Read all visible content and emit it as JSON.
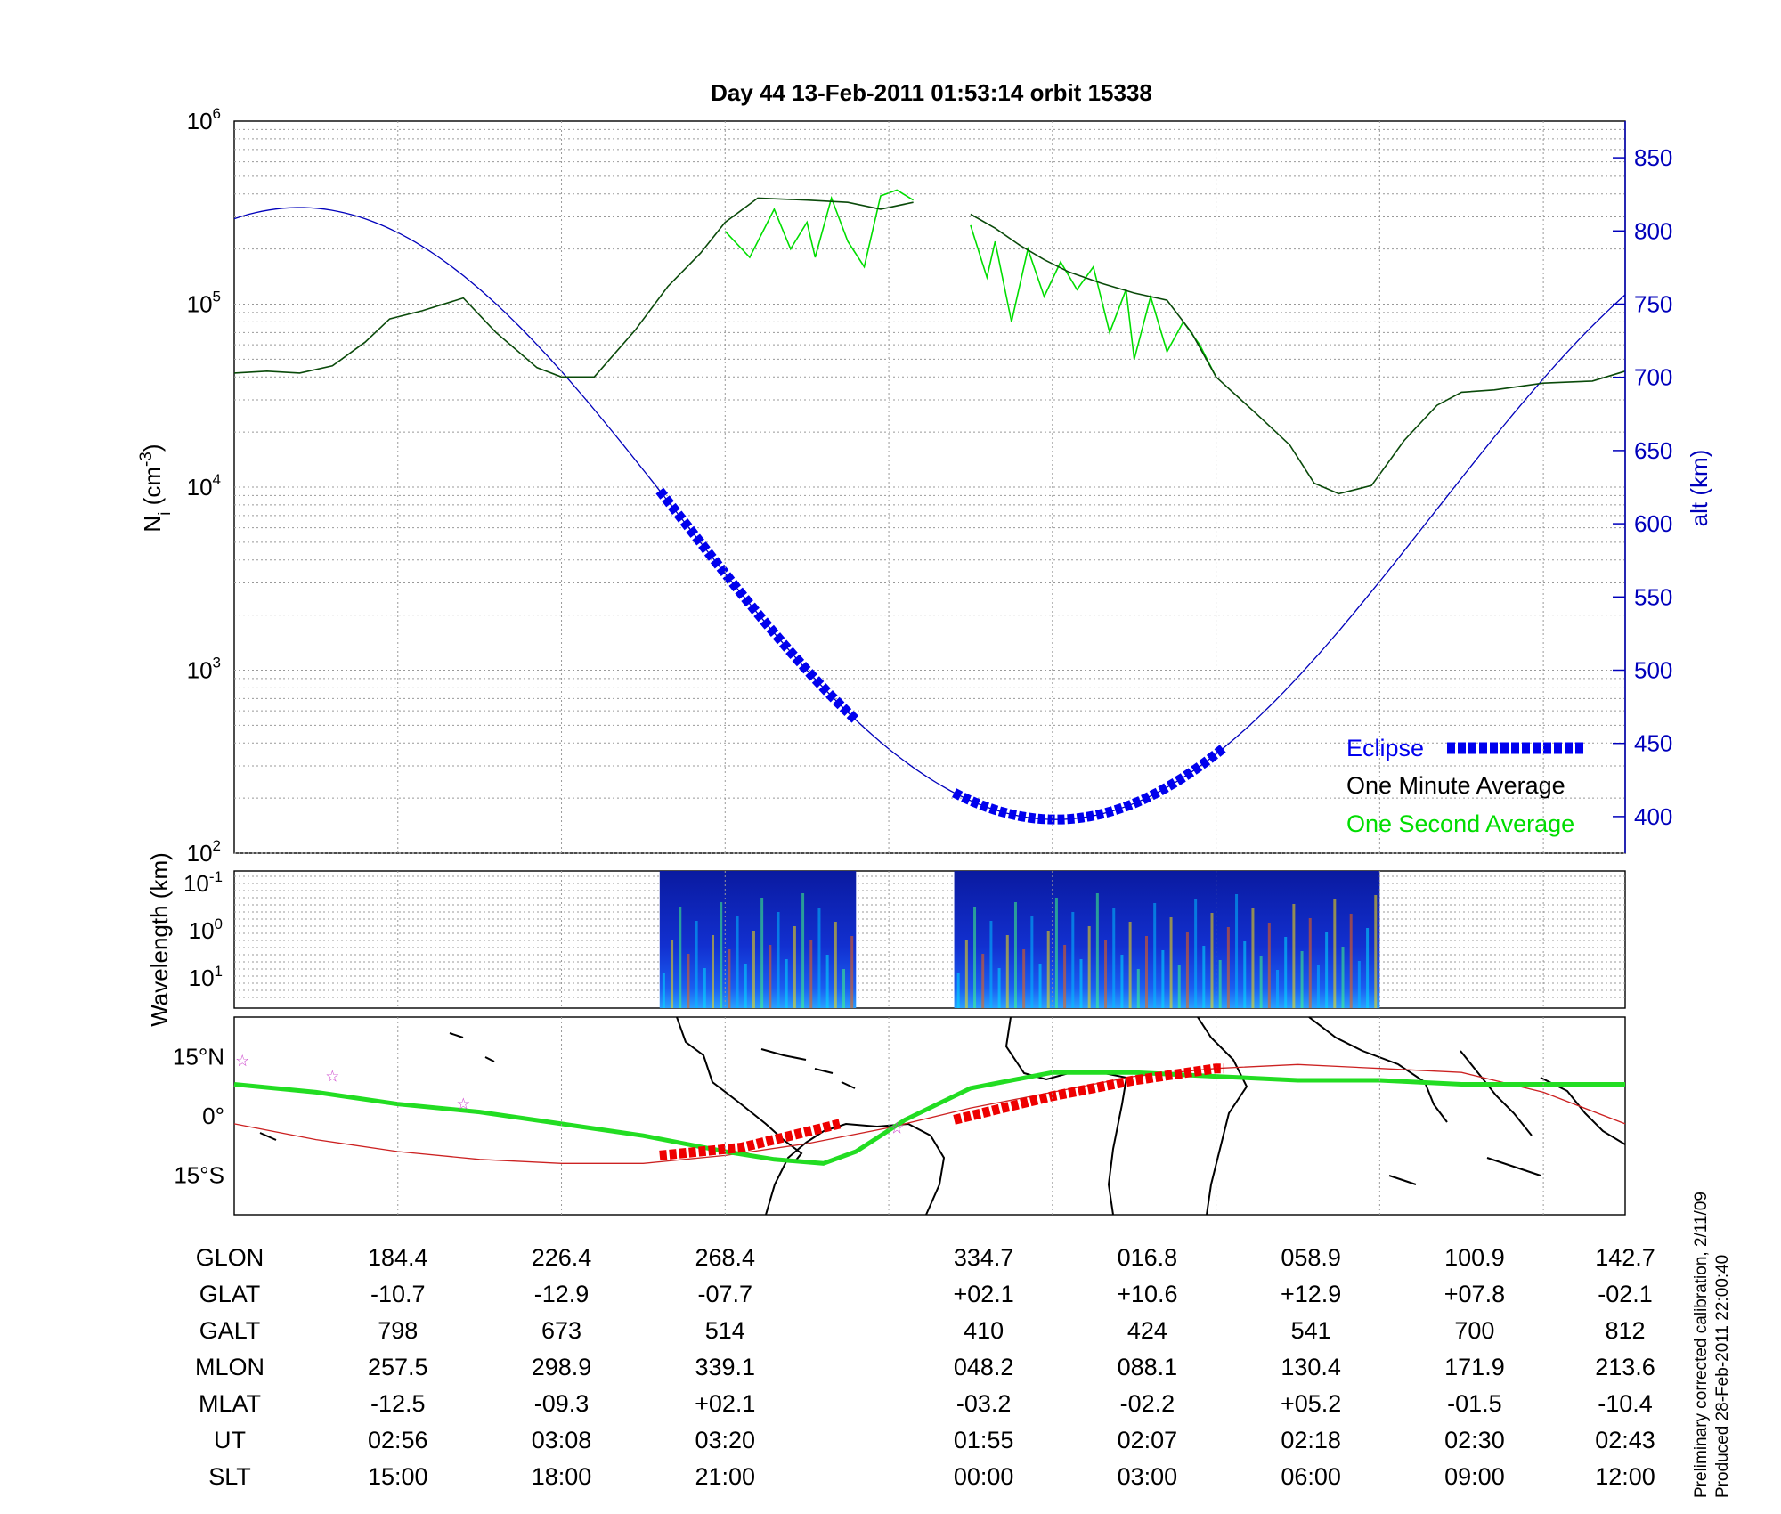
{
  "title": "Day 44  13-Feb-2011 01:53:14   orbit 15338",
  "side_note": {
    "line1": "Preliminary corrected calibration, 2/11/09",
    "line2": "Produced 28-Feb-2011 22:00:40"
  },
  "colors": {
    "altitude": "#0000bb",
    "one_second": "#00dd00",
    "one_minute": "#000000",
    "eclipse": "#0000ee",
    "track": "#22dd22",
    "dip_equator": "#cc2222",
    "eclipse_track": "#ee0000",
    "star": "#cc44cc"
  },
  "legend": {
    "eclipse": "Eclipse",
    "one_minute": "One Minute Average",
    "one_second": "One Second Average"
  },
  "chart_data": [
    {
      "type": "line",
      "panel": "density",
      "ylabel": "N_i (cm^-3)",
      "y_scale": "log",
      "ylim": [
        100,
        1000000
      ],
      "y_ticks": [
        "10^2",
        "10^3",
        "10^4",
        "10^5",
        "10^6"
      ],
      "y2label": "alt (km)",
      "y2lim": [
        375,
        875
      ],
      "y2_ticks": [
        400,
        450,
        500,
        550,
        600,
        650,
        700,
        750,
        800,
        850
      ],
      "x_index_range": [
        0,
        8.5
      ],
      "grid": true,
      "legend_position": "bottom-right",
      "series": [
        {
          "name": "One Minute Average",
          "segments": [
            [
              [
                0,
                42000
              ],
              [
                0.2,
                43000
              ],
              [
                0.4,
                42000
              ],
              [
                0.6,
                46000
              ],
              [
                0.8,
                62000
              ],
              [
                0.95,
                83000
              ],
              [
                1.15,
                92000
              ],
              [
                1.4,
                108000
              ],
              [
                1.6,
                70000
              ],
              [
                1.85,
                45000
              ],
              [
                2.0,
                40000
              ],
              [
                2.2,
                40000
              ],
              [
                2.45,
                72000
              ],
              [
                2.65,
                125000
              ],
              [
                2.85,
                190000
              ],
              [
                3.0,
                280000
              ],
              [
                3.2,
                380000
              ],
              [
                3.5,
                370000
              ],
              [
                3.75,
                360000
              ],
              [
                3.95,
                330000
              ],
              [
                4.15,
                360000
              ]
            ],
            [
              [
                4.5,
                310000
              ],
              [
                4.65,
                260000
              ],
              [
                4.8,
                210000
              ],
              [
                4.95,
                175000
              ],
              [
                5.1,
                150000
              ],
              [
                5.3,
                130000
              ],
              [
                5.5,
                115000
              ],
              [
                5.7,
                105000
              ],
              [
                5.85,
                70000
              ],
              [
                6.0,
                40000
              ],
              [
                6.25,
                25000
              ],
              [
                6.45,
                17000
              ],
              [
                6.6,
                10500
              ],
              [
                6.75,
                9200
              ],
              [
                6.95,
                10200
              ],
              [
                7.15,
                18000
              ],
              [
                7.35,
                28000
              ],
              [
                7.5,
                33000
              ],
              [
                7.7,
                34000
              ],
              [
                8.0,
                37000
              ],
              [
                8.3,
                38000
              ],
              [
                8.5,
                43000
              ]
            ]
          ]
        },
        {
          "name": "One Second Average",
          "segments": [
            [
              [
                3.0,
                250000
              ],
              [
                3.15,
                180000
              ],
              [
                3.3,
                330000
              ],
              [
                3.4,
                200000
              ],
              [
                3.5,
                280000
              ],
              [
                3.55,
                180000
              ],
              [
                3.65,
                380000
              ],
              [
                3.75,
                220000
              ],
              [
                3.85,
                160000
              ],
              [
                3.95,
                390000
              ],
              [
                4.05,
                420000
              ],
              [
                4.15,
                370000
              ]
            ],
            [
              [
                4.5,
                270000
              ],
              [
                4.6,
                140000
              ],
              [
                4.65,
                220000
              ],
              [
                4.75,
                80000
              ],
              [
                4.85,
                200000
              ],
              [
                4.95,
                110000
              ],
              [
                5.05,
                170000
              ],
              [
                5.15,
                120000
              ],
              [
                5.25,
                160000
              ],
              [
                5.35,
                70000
              ],
              [
                5.45,
                120000
              ],
              [
                5.5,
                50000
              ],
              [
                5.6,
                110000
              ],
              [
                5.7,
                55000
              ],
              [
                5.8,
                80000
              ],
              [
                5.9,
                60000
              ],
              [
                6.0,
                40000
              ]
            ]
          ]
        },
        {
          "name": "alt (km)",
          "axis": "right",
          "min_altitude_km": 398,
          "max_altitude_km": 816
        },
        {
          "name": "Eclipse",
          "axis": "right",
          "segments": [
            [
              2.6,
              3.8
            ],
            [
              4.4,
              6.05
            ]
          ]
        }
      ]
    },
    {
      "type": "heatmap",
      "panel": "spectrogram",
      "ylabel": "Wavelength (km)",
      "y_ticks": [
        "10^-1",
        "10^0",
        "10^1"
      ],
      "active_segments": [
        [
          2.6,
          3.8
        ],
        [
          4.4,
          7.0
        ]
      ]
    },
    {
      "type": "line",
      "panel": "map",
      "y_ticks": [
        "15°N",
        "0°",
        "15°S"
      ],
      "ylim": [
        -25,
        25
      ],
      "series": [
        {
          "name": "track",
          "points": [
            [
              0,
              8
            ],
            [
              0.5,
              6
            ],
            [
              1,
              3
            ],
            [
              1.5,
              1
            ],
            [
              2,
              -2
            ],
            [
              2.5,
              -5
            ],
            [
              3,
              -9
            ],
            [
              3.3,
              -11
            ],
            [
              3.6,
              -12
            ],
            [
              3.8,
              -9
            ],
            [
              4.1,
              -1
            ],
            [
              4.5,
              7
            ],
            [
              5,
              11
            ],
            [
              5.5,
              11
            ],
            [
              6,
              10
            ],
            [
              6.5,
              9
            ],
            [
              7,
              9
            ],
            [
              7.5,
              8
            ],
            [
              8,
              8
            ],
            [
              8.5,
              8
            ]
          ]
        },
        {
          "name": "dip-equator",
          "points": [
            [
              0,
              -2
            ],
            [
              0.5,
              -6
            ],
            [
              1,
              -9
            ],
            [
              1.5,
              -11
            ],
            [
              2,
              -12
            ],
            [
              2.5,
              -12
            ],
            [
              3,
              -10
            ],
            [
              3.5,
              -7
            ],
            [
              4,
              -3
            ],
            [
              4.5,
              2
            ],
            [
              5,
              6
            ],
            [
              5.5,
              10
            ],
            [
              6,
              12
            ],
            [
              6.5,
              13
            ],
            [
              7,
              12
            ],
            [
              7.5,
              11
            ],
            [
              8,
              6
            ],
            [
              8.5,
              -2
            ]
          ]
        },
        {
          "name": "eclipse-track",
          "segments": [
            [
              [
                2.6,
                -10
              ],
              [
                3.1,
                -8
              ],
              [
                3.7,
                -2
              ]
            ],
            [
              [
                4.4,
                -1
              ],
              [
                5,
                5
              ],
              [
                5.5,
                9
              ],
              [
                6,
                12
              ],
              [
                6.05,
                12
              ]
            ]
          ]
        },
        {
          "name": "stars",
          "points": [
            [
              0.05,
              14
            ],
            [
              0.6,
              10
            ],
            [
              1.4,
              3
            ],
            [
              4.05,
              -3
            ]
          ]
        }
      ]
    },
    {
      "type": "table",
      "rows": [
        {
          "label": "GLON",
          "values": [
            "184.4",
            "226.4",
            "268.4",
            "334.7",
            "016.8",
            "058.9",
            "100.9",
            "142.7"
          ]
        },
        {
          "label": "GLAT",
          "values": [
            "-10.7",
            "-12.9",
            "-07.7",
            "+02.1",
            "+10.6",
            "+12.9",
            "+07.8",
            "-02.1"
          ]
        },
        {
          "label": "GALT",
          "values": [
            "798",
            "673",
            "514",
            "410",
            "424",
            "541",
            "700",
            "812"
          ]
        },
        {
          "label": "MLON",
          "values": [
            "257.5",
            "298.9",
            "339.1",
            "048.2",
            "088.1",
            "130.4",
            "171.9",
            "213.6"
          ]
        },
        {
          "label": "MLAT",
          "values": [
            "-12.5",
            "-09.3",
            "+02.1",
            "-03.2",
            "-02.2",
            "+05.2",
            "-01.5",
            "-10.4"
          ]
        },
        {
          "label": "UT",
          "values": [
            "02:56",
            "03:08",
            "03:20",
            "01:55",
            "02:07",
            "02:18",
            "02:30",
            "02:43"
          ]
        },
        {
          "label": "SLT",
          "values": [
            "15:00",
            "18:00",
            "21:00",
            "00:00",
            "03:00",
            "06:00",
            "09:00",
            "12:00"
          ]
        }
      ]
    }
  ]
}
